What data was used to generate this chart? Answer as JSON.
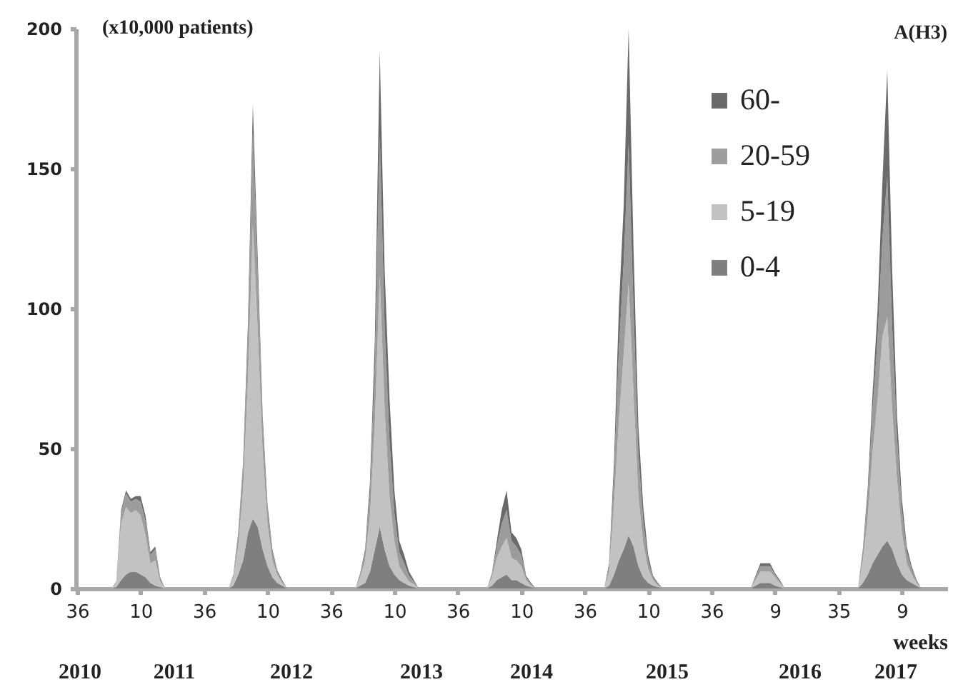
{
  "chart_data": {
    "type": "area",
    "title": "A(H3)",
    "ylabel": "(x10,000 patients)",
    "xlabel": "weeks",
    "stacked": true,
    "legend": "top right",
    "categories": [
      "36",
      null,
      null,
      null,
      null,
      null,
      null,
      null,
      null,
      null,
      null,
      null,
      null,
      "10",
      null,
      null,
      null,
      null,
      null,
      null,
      null,
      null,
      null,
      null,
      null,
      null,
      "36",
      null,
      null,
      null,
      null,
      null,
      null,
      null,
      null,
      null,
      null,
      null,
      null,
      "10",
      null,
      null,
      null,
      null,
      null,
      null,
      null,
      null,
      null,
      null,
      null,
      null,
      "36",
      null,
      null,
      null,
      null,
      null,
      null,
      null,
      null,
      null,
      null,
      null,
      null,
      "10",
      null,
      null,
      null,
      null,
      null,
      null,
      null,
      null,
      null,
      null,
      null,
      null,
      "36",
      null,
      null,
      null,
      null,
      null,
      null,
      null,
      null,
      null,
      null,
      null,
      null,
      "10",
      null,
      null,
      null,
      null,
      null,
      null,
      null,
      null,
      null,
      null,
      null,
      null,
      "36",
      null,
      null,
      null,
      null,
      null,
      null,
      null,
      null,
      null,
      null,
      null,
      null,
      "10",
      null,
      null,
      null,
      null,
      null,
      null,
      null,
      null,
      null,
      null,
      null,
      null,
      "36",
      null,
      null,
      null,
      null,
      null,
      null,
      null,
      null,
      null,
      null,
      null,
      null,
      "9",
      null,
      null,
      null,
      null,
      null,
      null,
      null,
      null,
      null,
      null,
      null,
      null,
      "35",
      null,
      null,
      null,
      null,
      null,
      null,
      null,
      null,
      null,
      null,
      null,
      null,
      "9",
      null,
      null,
      null,
      null,
      null,
      null,
      null,
      null,
      null
    ],
    "series": [
      {
        "name": "0-4",
        "color": "#7f7f7f",
        "values": [
          0,
          0,
          0,
          0,
          0,
          0,
          0,
          0,
          0.5,
          3,
          5,
          6,
          6,
          5,
          4,
          2,
          1,
          0.5,
          0,
          0,
          0,
          0,
          0,
          0,
          0,
          0,
          0,
          0,
          0,
          0,
          0,
          0,
          1,
          5,
          10,
          20,
          25,
          22,
          14,
          8,
          4,
          2,
          1,
          0,
          0,
          0,
          0,
          0,
          0,
          0,
          0,
          0,
          0,
          0,
          0,
          0,
          0,
          0,
          1,
          2,
          6,
          14,
          22,
          14,
          8,
          5,
          3,
          2,
          1,
          0.5,
          0,
          0,
          0,
          0,
          0,
          0,
          0,
          0,
          0,
          0,
          0,
          0,
          0,
          0,
          0,
          1,
          3,
          4,
          5,
          3,
          3,
          2,
          1,
          0.5,
          0,
          0,
          0,
          0,
          0,
          0,
          0,
          0,
          0,
          0,
          0,
          0,
          0,
          0,
          0,
          1,
          5,
          10,
          14,
          19,
          15,
          8,
          4,
          2,
          1,
          0.5,
          0,
          0,
          0,
          0,
          0,
          0,
          0,
          0,
          0,
          0,
          0,
          0,
          0,
          0,
          0,
          0,
          0,
          0,
          0,
          1,
          2,
          2,
          2,
          1,
          0.5,
          0,
          0,
          0,
          0,
          0,
          0,
          0,
          0,
          0,
          0,
          0,
          0,
          0,
          0,
          0,
          0,
          2,
          5,
          9,
          12,
          15,
          17,
          14,
          9,
          5,
          3,
          2,
          1,
          0,
          0,
          0,
          0,
          0,
          0
        ]
      },
      {
        "name": "5-19",
        "color": "#c2c2c2",
        "values": [
          0,
          0,
          0,
          0,
          0,
          0,
          0,
          0,
          1.5,
          20,
          24,
          21,
          22,
          21,
          15,
          7,
          9,
          2,
          0,
          0,
          0,
          0,
          0,
          0,
          0,
          0,
          0,
          0,
          0,
          0,
          0,
          0,
          3,
          10,
          25,
          55,
          105,
          70,
          35,
          15,
          6,
          3,
          1,
          0,
          0,
          0,
          0,
          0,
          0,
          0,
          0,
          0,
          0,
          0,
          0,
          0,
          0,
          0,
          3,
          8,
          20,
          45,
          90,
          50,
          25,
          12,
          5,
          3,
          1.5,
          1,
          0,
          0,
          0,
          0,
          0,
          0,
          0,
          0,
          0,
          0,
          0,
          0,
          0,
          0,
          0,
          3,
          8,
          11,
          13,
          8,
          7,
          6,
          2,
          0.5,
          0,
          0,
          0,
          0,
          0,
          0,
          0,
          0,
          0,
          0,
          0,
          0,
          0,
          0,
          0,
          5,
          25,
          50,
          70,
          90,
          55,
          25,
          12,
          5,
          2,
          0.5,
          0,
          0,
          0,
          0,
          0,
          0,
          0,
          0,
          0,
          0,
          0,
          0,
          0,
          0,
          0,
          0,
          0,
          0,
          0,
          2,
          4,
          4,
          4,
          3,
          1.5,
          0,
          0,
          0,
          0,
          0,
          0,
          0,
          0,
          0,
          0,
          0,
          0,
          0,
          0,
          0,
          0,
          8,
          20,
          40,
          55,
          75,
          80,
          50,
          30,
          15,
          6,
          3,
          1,
          0,
          0,
          0,
          0,
          0,
          0
        ]
      },
      {
        "name": "20-59",
        "color": "#9c9c9c",
        "values": [
          0,
          0,
          0,
          0,
          0,
          0,
          0,
          0,
          0.5,
          4,
          5,
          4,
          4,
          5,
          5,
          3,
          4,
          1,
          0,
          0,
          0,
          0,
          0,
          0,
          0,
          0,
          0,
          0,
          0,
          0,
          0,
          0,
          1,
          4,
          8,
          15,
          33,
          20,
          10,
          5,
          3,
          1,
          0.5,
          0,
          0,
          0,
          0,
          0,
          0,
          0,
          0,
          0,
          0,
          0,
          0,
          0,
          0,
          0,
          1,
          3,
          8,
          20,
          50,
          30,
          20,
          10,
          5,
          4,
          2,
          1,
          0,
          0,
          0,
          0,
          0,
          0,
          0,
          0,
          0,
          0,
          0,
          0,
          0,
          0,
          0,
          1,
          4,
          8,
          10,
          6,
          5,
          4,
          1,
          0.5,
          0,
          0,
          0,
          0,
          0,
          0,
          0,
          0,
          0,
          0,
          0,
          0,
          0,
          0,
          0,
          2,
          10,
          25,
          33,
          50,
          30,
          15,
          8,
          3,
          1,
          0.5,
          0,
          0,
          0,
          0,
          0,
          0,
          0,
          0,
          0,
          0,
          0,
          0,
          0,
          0,
          0,
          0,
          0,
          0,
          0,
          1,
          2,
          2,
          2,
          1,
          0.5,
          0,
          0,
          0,
          0,
          0,
          0,
          0,
          0,
          0,
          0,
          0,
          0,
          0,
          0,
          0,
          0,
          3,
          8,
          15,
          22,
          35,
          50,
          30,
          15,
          8,
          4,
          2,
          0.5,
          0,
          0,
          0,
          0,
          0,
          0
        ]
      },
      {
        "name": "60-",
        "color": "#6a6a6a",
        "values": [
          0,
          0,
          0,
          0,
          0,
          0,
          0,
          0,
          0,
          1,
          1,
          1,
          1,
          2,
          2,
          1,
          1,
          0.5,
          0,
          0,
          0,
          0,
          0,
          0,
          0,
          0,
          0,
          0,
          0,
          0,
          0,
          0,
          0,
          1,
          2,
          5,
          10,
          6,
          3,
          2,
          1,
          0.5,
          0.5,
          0,
          0,
          0,
          0,
          0,
          0,
          0,
          0,
          0,
          0,
          0,
          0,
          0,
          0,
          0,
          0.5,
          1,
          4,
          10,
          30,
          20,
          15,
          8,
          4,
          3,
          1.5,
          0.5,
          0,
          0,
          0,
          0,
          0,
          0,
          0,
          0,
          0,
          0,
          0,
          0,
          0,
          0,
          0,
          0.5,
          2,
          5,
          7,
          3,
          3,
          2,
          0.5,
          0.5,
          0,
          0,
          0,
          0,
          0,
          0,
          0,
          0,
          0,
          0,
          0,
          0,
          0,
          0,
          0,
          1,
          5,
          15,
          20,
          41,
          22,
          10,
          5,
          2,
          0.5,
          0.5,
          0,
          0,
          0,
          0,
          0,
          0,
          0,
          0,
          0,
          0,
          0,
          0,
          0,
          0,
          0,
          0,
          0,
          0,
          0,
          0.5,
          1,
          1,
          1,
          0.5,
          0.5,
          0,
          0,
          0,
          0,
          0,
          0,
          0,
          0,
          0,
          0,
          0,
          0,
          0,
          0,
          0,
          0,
          1,
          3,
          6,
          10,
          20,
          38,
          20,
          8,
          4,
          2,
          1,
          0.5,
          0,
          0,
          0,
          0,
          0,
          0
        ]
      }
    ],
    "annotations": [
      "2010",
      "2011",
      "2012",
      "2013",
      "2014",
      "2015",
      "2016",
      "2017"
    ],
    "ylim": [
      0,
      200
    ],
    "yticks": [
      0,
      50,
      100,
      150,
      200
    ]
  }
}
